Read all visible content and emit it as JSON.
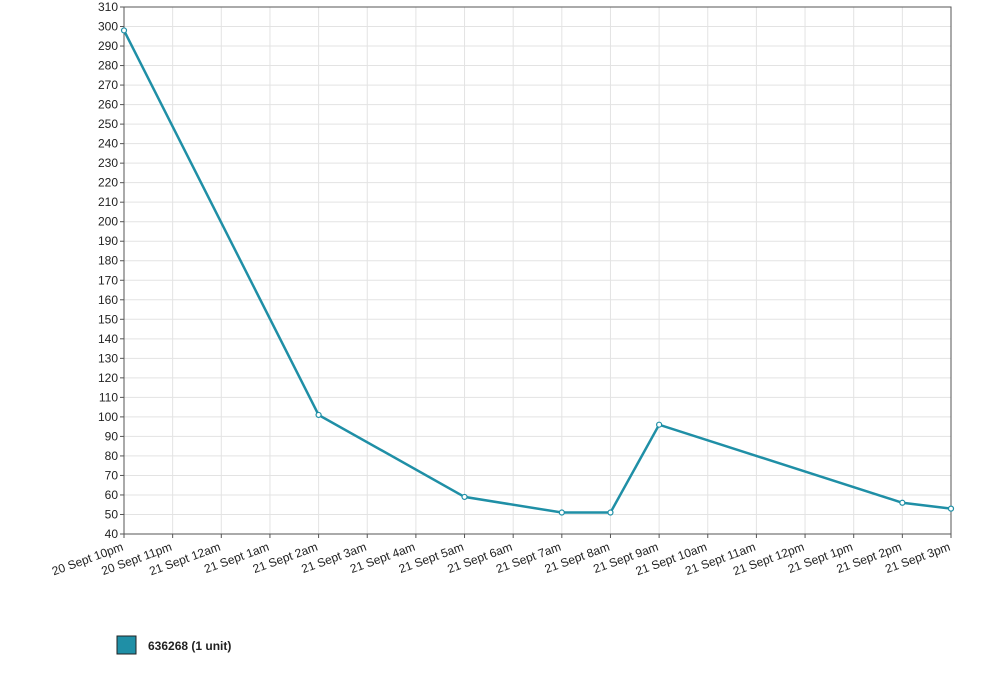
{
  "chart_data": {
    "type": "line",
    "categories": [
      "20 Sept 10pm",
      "20 Sept 11pm",
      "21 Sept 12am",
      "21 Sept 1am",
      "21 Sept 2am",
      "21 Sept 3am",
      "21 Sept 4am",
      "21 Sept 5am",
      "21 Sept 6am",
      "21 Sept 7am",
      "21 Sept 8am",
      "21 Sept 9am",
      "21 Sept 10am",
      "21 Sept 11am",
      "21 Sept 12pm",
      "21 Sept 1pm",
      "21 Sept 2pm",
      "21 Sept 3pm"
    ],
    "x": [
      "20 Sept 10pm",
      "21 Sept 2am",
      "21 Sept 5am",
      "21 Sept 7am",
      "21 Sept 8am",
      "21 Sept 9am",
      "21 Sept 2pm",
      "21 Sept 3pm"
    ],
    "series": [
      {
        "name": "636268 (1 unit)",
        "color": "#1f8fa6",
        "values": [
          298,
          101,
          59,
          51,
          51,
          96,
          56,
          53
        ]
      }
    ],
    "ylim": [
      40,
      310
    ],
    "yticks": [
      40,
      50,
      60,
      70,
      80,
      90,
      100,
      110,
      120,
      130,
      140,
      150,
      160,
      170,
      180,
      190,
      200,
      210,
      220,
      230,
      240,
      250,
      260,
      270,
      280,
      290,
      300,
      310
    ],
    "grid": true
  }
}
